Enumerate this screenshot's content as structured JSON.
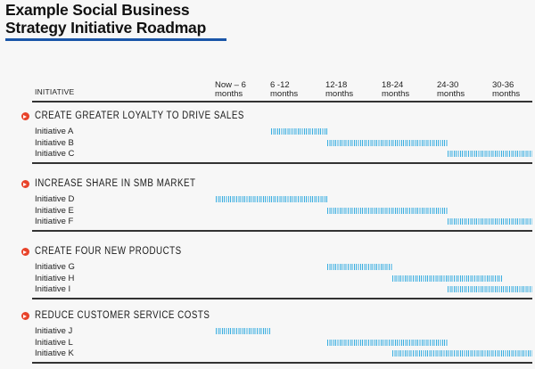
{
  "title_lines": [
    "Example Social Business",
    "Strategy Initiative Roadmap"
  ],
  "colors": {
    "accent": "#1a56a8",
    "bar": "#3aaee0",
    "bullet": "#e8432a"
  },
  "header": {
    "initiative": "INITIATIVE",
    "columns": [
      {
        "line1": "Now – 6",
        "line2": "months"
      },
      {
        "line1": "6 -12",
        "line2": "months"
      },
      {
        "line1": "12-18",
        "line2": "months"
      },
      {
        "line1": "18-24",
        "line2": "months"
      },
      {
        "line1": "24-30",
        "line2": "months"
      },
      {
        "line1": "30-36",
        "line2": "months"
      }
    ]
  },
  "sections": [
    {
      "title": "CREATE GREATER LOYALTY TO DRIVE SALES",
      "rows": [
        {
          "label": "Initiative A",
          "start_month": 6,
          "end_month": 12
        },
        {
          "label": "Initiative B",
          "start_month": 12,
          "end_month": 25
        },
        {
          "label": "Initiative C",
          "start_month": 25,
          "end_month": 36
        }
      ]
    },
    {
      "title": "INCREASE SHARE IN SMB MARKET",
      "rows": [
        {
          "label": "Initiative D",
          "start_month": 0,
          "end_month": 12
        },
        {
          "label": "Initiative E",
          "start_month": 12,
          "end_month": 25
        },
        {
          "label": "Initiative F",
          "start_month": 25,
          "end_month": 36
        }
      ]
    },
    {
      "title": "CREATE FOUR NEW PRODUCTS",
      "rows": [
        {
          "label": "Initiative G",
          "start_month": 12,
          "end_month": 19
        },
        {
          "label": "Initiative H",
          "start_month": 19,
          "end_month": 31
        },
        {
          "label": "Initiative I",
          "start_month": 25,
          "end_month": 36
        }
      ]
    },
    {
      "title": "REDUCE CUSTOMER SERVICE COSTS",
      "rows": [
        {
          "label": "Initiative J",
          "start_month": 0,
          "end_month": 6
        },
        {
          "label": "Initiative L",
          "start_month": 12,
          "end_month": 25
        },
        {
          "label": "Initiative K",
          "start_month": 19,
          "end_month": 36
        }
      ]
    }
  ]
}
